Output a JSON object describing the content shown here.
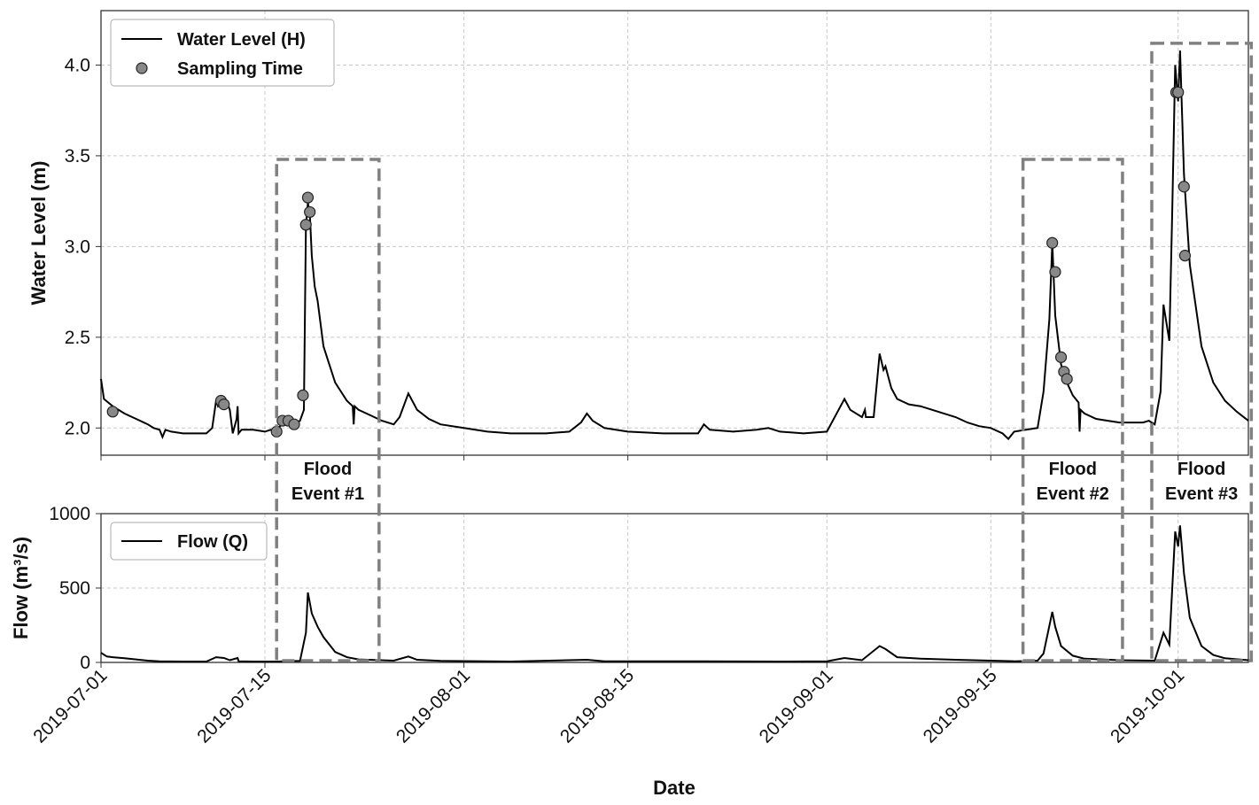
{
  "chart_data": [
    {
      "type": "line",
      "panel": "top",
      "ylabel": "Water Level (m)",
      "ylim": [
        1.85,
        4.3
      ],
      "yticks": [
        "2.0",
        "2.5",
        "3.0",
        "3.5",
        "4.0"
      ],
      "xlim": [
        "2019-07-01",
        "2019-10-07"
      ],
      "grid": true,
      "legend": {
        "location": "upper-left",
        "entries": [
          {
            "label": "Water Level (H)",
            "marker": "line"
          },
          {
            "label": "Sampling Time",
            "marker": "circle"
          }
        ]
      },
      "series": [
        {
          "name": "Water Level (H)",
          "color": "#000000",
          "points": [
            [
              "2019-07-01 00:00",
              2.27
            ],
            [
              "2019-07-01 06:00",
              2.16
            ],
            [
              "2019-07-02",
              2.12
            ],
            [
              "2019-07-03",
              2.08
            ],
            [
              "2019-07-04",
              2.05
            ],
            [
              "2019-07-05",
              2.02
            ],
            [
              "2019-07-05 12:00",
              2.0
            ],
            [
              "2019-07-06",
              1.99
            ],
            [
              "2019-07-06 06:00",
              1.95
            ],
            [
              "2019-07-06 12:00",
              1.99
            ],
            [
              "2019-07-07",
              1.98
            ],
            [
              "2019-07-08",
              1.97
            ],
            [
              "2019-07-09",
              1.97
            ],
            [
              "2019-07-10",
              1.97
            ],
            [
              "2019-07-10 12:00",
              2.0
            ],
            [
              "2019-07-10 20:00",
              2.15
            ],
            [
              "2019-07-11",
              2.12
            ],
            [
              "2019-07-11 12:00",
              2.16
            ],
            [
              "2019-07-11 20:00",
              2.13
            ],
            [
              "2019-07-12",
              2.1
            ],
            [
              "2019-07-12 06:00",
              1.97
            ],
            [
              "2019-07-12 14:00",
              2.05
            ],
            [
              "2019-07-12 16:00",
              2.12
            ],
            [
              "2019-07-12 18:00",
              1.97
            ],
            [
              "2019-07-13",
              1.99
            ],
            [
              "2019-07-14",
              1.99
            ],
            [
              "2019-07-15",
              1.98
            ],
            [
              "2019-07-15 12:00",
              1.99
            ],
            [
              "2019-07-16",
              1.98
            ],
            [
              "2019-07-16 12:00",
              2.03
            ],
            [
              "2019-07-17",
              2.02
            ],
            [
              "2019-07-17 12:00",
              2.02
            ],
            [
              "2019-07-18",
              2.04
            ],
            [
              "2019-07-18 08:00",
              2.1
            ],
            [
              "2019-07-18 12:00",
              3.12
            ],
            [
              "2019-07-18 16:00",
              3.24
            ],
            [
              "2019-07-18 20:00",
              3.18
            ],
            [
              "2019-07-19",
              2.95
            ],
            [
              "2019-07-19 06:00",
              2.78
            ],
            [
              "2019-07-19 12:00",
              2.7
            ],
            [
              "2019-07-20",
              2.45
            ],
            [
              "2019-07-21",
              2.25
            ],
            [
              "2019-07-22",
              2.15
            ],
            [
              "2019-07-22 12:00",
              2.12
            ],
            [
              "2019-07-22 14:00",
              2.02
            ],
            [
              "2019-07-22 16:00",
              2.12
            ],
            [
              "2019-07-23",
              2.1
            ],
            [
              "2019-07-24",
              2.07
            ],
            [
              "2019-07-25",
              2.04
            ],
            [
              "2019-07-26",
              2.02
            ],
            [
              "2019-07-26 12:00",
              2.06
            ],
            [
              "2019-07-27 06:00",
              2.19
            ],
            [
              "2019-07-28",
              2.1
            ],
            [
              "2019-07-29",
              2.05
            ],
            [
              "2019-07-30",
              2.02
            ],
            [
              "2019-08-01",
              2.0
            ],
            [
              "2019-08-03",
              1.98
            ],
            [
              "2019-08-05",
              1.97
            ],
            [
              "2019-08-08",
              1.97
            ],
            [
              "2019-08-10",
              1.98
            ],
            [
              "2019-08-11",
              2.03
            ],
            [
              "2019-08-11 12:00",
              2.08
            ],
            [
              "2019-08-12",
              2.04
            ],
            [
              "2019-08-13",
              2.0
            ],
            [
              "2019-08-15",
              1.98
            ],
            [
              "2019-08-18",
              1.97
            ],
            [
              "2019-08-21",
              1.97
            ],
            [
              "2019-08-21 12:00",
              2.02
            ],
            [
              "2019-08-22",
              1.99
            ],
            [
              "2019-08-24",
              1.98
            ],
            [
              "2019-08-26",
              1.99
            ],
            [
              "2019-08-27",
              2.0
            ],
            [
              "2019-08-28",
              1.98
            ],
            [
              "2019-08-30",
              1.97
            ],
            [
              "2019-09-01",
              1.98
            ],
            [
              "2019-09-02",
              2.1
            ],
            [
              "2019-09-02 12:00",
              2.16
            ],
            [
              "2019-09-03",
              2.1
            ],
            [
              "2019-09-04",
              2.06
            ],
            [
              "2019-09-04 06:00",
              2.1
            ],
            [
              "2019-09-04 08:00",
              2.06
            ],
            [
              "2019-09-05",
              2.06
            ],
            [
              "2019-09-05 12:00",
              2.41
            ],
            [
              "2019-09-05 20:00",
              2.32
            ],
            [
              "2019-09-06",
              2.34
            ],
            [
              "2019-09-06 12:00",
              2.22
            ],
            [
              "2019-09-07",
              2.16
            ],
            [
              "2019-09-08",
              2.13
            ],
            [
              "2019-09-09",
              2.12
            ],
            [
              "2019-09-10",
              2.1
            ],
            [
              "2019-09-11",
              2.08
            ],
            [
              "2019-09-12",
              2.06
            ],
            [
              "2019-09-13",
              2.03
            ],
            [
              "2019-09-14",
              2.01
            ],
            [
              "2019-09-15",
              2.0
            ],
            [
              "2019-09-16",
              1.97
            ],
            [
              "2019-09-16 12:00",
              1.94
            ],
            [
              "2019-09-17",
              1.98
            ],
            [
              "2019-09-18",
              1.99
            ],
            [
              "2019-09-19",
              2.0
            ],
            [
              "2019-09-19 12:00",
              2.2
            ],
            [
              "2019-09-20",
              2.6
            ],
            [
              "2019-09-20 06:00",
              3.02
            ],
            [
              "2019-09-20 12:00",
              2.62
            ],
            [
              "2019-09-21",
              2.35
            ],
            [
              "2019-09-21 12:00",
              2.25
            ],
            [
              "2019-09-22",
              2.18
            ],
            [
              "2019-09-22 12:00",
              2.14
            ],
            [
              "2019-09-22 14:00",
              1.98
            ],
            [
              "2019-09-22 16:00",
              2.1
            ],
            [
              "2019-09-23",
              2.08
            ],
            [
              "2019-09-24",
              2.05
            ],
            [
              "2019-09-25",
              2.04
            ],
            [
              "2019-09-26",
              2.03
            ],
            [
              "2019-09-27",
              2.03
            ],
            [
              "2019-09-28",
              2.03
            ],
            [
              "2019-09-28 12:00",
              2.04
            ],
            [
              "2019-09-29",
              2.02
            ],
            [
              "2019-09-29 12:00",
              2.2
            ],
            [
              "2019-09-29 18:00",
              2.68
            ],
            [
              "2019-09-30",
              2.58
            ],
            [
              "2019-09-30 06:00",
              2.48
            ],
            [
              "2019-09-30 12:00",
              3.2
            ],
            [
              "2019-09-30 18:00",
              4.0
            ],
            [
              "2019-10-01",
              3.8
            ],
            [
              "2019-10-01 04:00",
              4.08
            ],
            [
              "2019-10-01 12:00",
              3.4
            ],
            [
              "2019-10-02",
              2.9
            ],
            [
              "2019-10-03",
              2.45
            ],
            [
              "2019-10-04",
              2.25
            ],
            [
              "2019-10-05",
              2.15
            ],
            [
              "2019-10-06",
              2.09
            ],
            [
              "2019-10-07",
              2.04
            ]
          ]
        },
        {
          "name": "Sampling Time",
          "type": "scatter",
          "color": "#888888",
          "points": [
            [
              "2019-07-02",
              2.09
            ],
            [
              "2019-07-11 06:00",
              2.15
            ],
            [
              "2019-07-11 12:00",
              2.13
            ],
            [
              "2019-07-16",
              1.98
            ],
            [
              "2019-07-16 12:00",
              2.04
            ],
            [
              "2019-07-17",
              2.04
            ],
            [
              "2019-07-17 12:00",
              2.02
            ],
            [
              "2019-07-18 06:00",
              2.18
            ],
            [
              "2019-07-18 12:00",
              3.12
            ],
            [
              "2019-07-18 16:00",
              3.27
            ],
            [
              "2019-07-18 20:00",
              3.19
            ],
            [
              "2019-09-20 06:00",
              3.02
            ],
            [
              "2019-09-20 12:00",
              2.86
            ],
            [
              "2019-09-21",
              2.39
            ],
            [
              "2019-09-21 06:00",
              2.31
            ],
            [
              "2019-09-21 12:00",
              2.27
            ],
            [
              "2019-09-30 20:00",
              3.85
            ],
            [
              "2019-10-01",
              3.85
            ],
            [
              "2019-10-01 12:00",
              3.33
            ],
            [
              "2019-10-01 14:00",
              2.95
            ]
          ]
        }
      ]
    },
    {
      "type": "line",
      "panel": "bottom",
      "xlabel": "Date",
      "ylabel": "Flow (m³/s)",
      "ylim": [
        0,
        1000
      ],
      "yticks": [
        "0",
        "500",
        "1000"
      ],
      "xlim": [
        "2019-07-01",
        "2019-10-07"
      ],
      "xticks": [
        "2019-07-01",
        "2019-07-15",
        "2019-08-01",
        "2019-08-15",
        "2019-09-01",
        "2019-09-15",
        "2019-10-01"
      ],
      "grid": true,
      "legend": {
        "location": "upper-left",
        "entries": [
          {
            "label": "Flow (Q)",
            "marker": "line"
          }
        ]
      },
      "series": [
        {
          "name": "Flow (Q)",
          "color": "#000000",
          "points": [
            [
              "2019-07-01 00:00",
              65
            ],
            [
              "2019-07-01 12:00",
              40
            ],
            [
              "2019-07-02",
              35
            ],
            [
              "2019-07-03",
              28
            ],
            [
              "2019-07-04",
              20
            ],
            [
              "2019-07-05",
              12
            ],
            [
              "2019-07-06",
              8
            ],
            [
              "2019-07-08",
              6
            ],
            [
              "2019-07-10",
              6
            ],
            [
              "2019-07-10 20:00",
              35
            ],
            [
              "2019-07-11 12:00",
              30
            ],
            [
              "2019-07-12",
              15
            ],
            [
              "2019-07-12 16:00",
              30
            ],
            [
              "2019-07-12 18:00",
              8
            ],
            [
              "2019-07-14",
              6
            ],
            [
              "2019-07-16",
              6
            ],
            [
              "2019-07-18",
              10
            ],
            [
              "2019-07-18 12:00",
              200
            ],
            [
              "2019-07-18 16:00",
              470
            ],
            [
              "2019-07-19",
              330
            ],
            [
              "2019-07-19 12:00",
              240
            ],
            [
              "2019-07-20",
              170
            ],
            [
              "2019-07-21",
              70
            ],
            [
              "2019-07-22",
              35
            ],
            [
              "2019-07-23",
              20
            ],
            [
              "2019-07-26",
              12
            ],
            [
              "2019-07-27 06:00",
              40
            ],
            [
              "2019-07-28",
              18
            ],
            [
              "2019-07-30",
              10
            ],
            [
              "2019-08-05",
              6
            ],
            [
              "2019-08-11 12:00",
              18
            ],
            [
              "2019-08-13",
              8
            ],
            [
              "2019-08-21 12:00",
              8
            ],
            [
              "2019-08-28",
              6
            ],
            [
              "2019-09-01",
              8
            ],
            [
              "2019-09-02 12:00",
              30
            ],
            [
              "2019-09-04",
              15
            ],
            [
              "2019-09-05 12:00",
              110
            ],
            [
              "2019-09-06",
              90
            ],
            [
              "2019-09-07",
              35
            ],
            [
              "2019-09-09",
              25
            ],
            [
              "2019-09-12",
              18
            ],
            [
              "2019-09-15",
              12
            ],
            [
              "2019-09-17",
              8
            ],
            [
              "2019-09-19",
              12
            ],
            [
              "2019-09-19 12:00",
              60
            ],
            [
              "2019-09-20 06:00",
              340
            ],
            [
              "2019-09-20 12:00",
              240
            ],
            [
              "2019-09-21",
              110
            ],
            [
              "2019-09-22",
              45
            ],
            [
              "2019-09-23",
              25
            ],
            [
              "2019-09-26",
              15
            ],
            [
              "2019-09-29",
              12
            ],
            [
              "2019-09-29 18:00",
              200
            ],
            [
              "2019-09-30 06:00",
              120
            ],
            [
              "2019-09-30 12:00",
              500
            ],
            [
              "2019-09-30 18:00",
              880
            ],
            [
              "2019-10-01",
              780
            ],
            [
              "2019-10-01 04:00",
              920
            ],
            [
              "2019-10-01 12:00",
              600
            ],
            [
              "2019-10-02",
              300
            ],
            [
              "2019-10-03",
              110
            ],
            [
              "2019-10-04",
              50
            ],
            [
              "2019-10-05",
              28
            ],
            [
              "2019-10-07",
              15
            ]
          ]
        }
      ]
    }
  ],
  "flood_events": [
    {
      "label_line1": "Flood",
      "label_line2": "Event #1",
      "start": "2019-07-16",
      "end": "2019-07-24 18:00",
      "top_level": 3.48
    },
    {
      "label_line1": "Flood",
      "label_line2": "Event #2",
      "start": "2019-09-17 18:00",
      "end": "2019-09-26 06:00",
      "top_level": 3.48
    },
    {
      "label_line1": "Flood",
      "label_line2": "Event #3",
      "start": "2019-09-28 18:00",
      "end": "2019-10-07 06:00",
      "top_level": 4.12
    }
  ],
  "colors": {
    "line": "#000000",
    "marker": "#888888",
    "event_box": "#808080",
    "grid": "#c8c8c8"
  }
}
